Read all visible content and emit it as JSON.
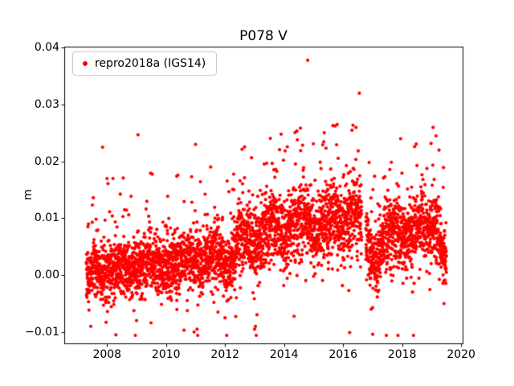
{
  "figure": {
    "title": "P078 V",
    "background_color": "#ffffff"
  },
  "legend": {
    "label": "repro2018a (IGS14)",
    "marker_color": "#ff0000",
    "position": "upper left"
  },
  "chart_data": {
    "type": "scatter",
    "title": "P078 V",
    "xlabel": "",
    "ylabel": "m",
    "grid": false,
    "legend_entries": [
      "repro2018a (IGS14)"
    ],
    "legend_position": "upper left",
    "xlim": [
      2006.55,
      2020.05
    ],
    "ylim": [
      -0.012,
      0.0402
    ],
    "xticks": [
      2008,
      2010,
      2012,
      2014,
      2016,
      2018,
      2020
    ],
    "yticks": [
      -0.01,
      0.0,
      0.01,
      0.02,
      0.03,
      0.04
    ],
    "series": [
      {
        "name": "repro2018a (IGS14)",
        "color": "#ff0000",
        "marker": ".",
        "x_start": 2007.3,
        "x_end": 2019.5,
        "samples_per_year": 340,
        "trend_knots": [
          [
            2007.3,
            0.0005
          ],
          [
            2007.7,
            0.0015
          ],
          [
            2008.0,
            0.0005
          ],
          [
            2008.45,
            0.002
          ],
          [
            2008.8,
            0.0005
          ],
          [
            2009.1,
            0.001
          ],
          [
            2009.45,
            0.0025
          ],
          [
            2009.8,
            0.0015
          ],
          [
            2010.1,
            0.0008
          ],
          [
            2010.5,
            0.0025
          ],
          [
            2010.85,
            0.003
          ],
          [
            2011.15,
            0.0012
          ],
          [
            2011.5,
            0.0035
          ],
          [
            2011.8,
            0.004
          ],
          [
            2012.05,
            0.0008
          ],
          [
            2012.45,
            0.006
          ],
          [
            2012.75,
            0.0075
          ],
          [
            2013.0,
            0.0035
          ],
          [
            2013.35,
            0.0075
          ],
          [
            2013.7,
            0.0095
          ],
          [
            2014.0,
            0.006
          ],
          [
            2014.35,
            0.0095
          ],
          [
            2014.7,
            0.011
          ],
          [
            2015.0,
            0.0075
          ],
          [
            2015.35,
            0.0095
          ],
          [
            2015.7,
            0.011
          ],
          [
            2016.0,
            0.008
          ],
          [
            2016.35,
            0.011
          ],
          [
            2016.6,
            0.0095
          ],
          [
            2016.9,
            0.004
          ],
          [
            2017.1,
            0.0015
          ],
          [
            2017.4,
            0.006
          ],
          [
            2017.7,
            0.008
          ],
          [
            2018.0,
            0.0065
          ],
          [
            2018.35,
            0.0065
          ],
          [
            2018.65,
            0.009
          ],
          [
            2018.95,
            0.0075
          ],
          [
            2019.15,
            0.0085
          ],
          [
            2019.45,
            0.0025
          ]
        ],
        "spread_knots": [
          [
            2007.3,
            0.0023
          ],
          [
            2010.0,
            0.0023
          ],
          [
            2011.5,
            0.0025
          ],
          [
            2012.5,
            0.0029
          ],
          [
            2014.0,
            0.0031
          ],
          [
            2016.5,
            0.0031
          ],
          [
            2017.5,
            0.0028
          ],
          [
            2019.5,
            0.0026
          ]
        ],
        "gaps": [
          [
            2016.63,
            2016.77
          ]
        ],
        "outliers": [
          [
            2007.85,
            0.0225
          ],
          [
            2008.0,
            0.017
          ],
          [
            2008.2,
            0.017
          ],
          [
            2009.05,
            0.0247
          ],
          [
            2009.35,
            0.013
          ],
          [
            2011.0,
            0.023
          ],
          [
            2013.9,
            0.0248
          ],
          [
            2014.45,
            0.0238
          ],
          [
            2014.8,
            0.0378
          ],
          [
            2015.8,
            0.0265
          ],
          [
            2016.3,
            0.0255
          ],
          [
            2016.55,
            0.032
          ],
          [
            2017.95,
            0.024
          ],
          [
            2019.05,
            0.026
          ],
          [
            2019.15,
            0.0245
          ],
          [
            2007.45,
            -0.009
          ],
          [
            2008.3,
            -0.0105
          ],
          [
            2009.0,
            -0.008
          ],
          [
            2010.95,
            -0.01
          ],
          [
            2011.05,
            -0.0095
          ],
          [
            2012.0,
            -0.0075
          ],
          [
            2013.0,
            -0.0095
          ],
          [
            2013.03,
            -0.009
          ],
          [
            2016.95,
            -0.006
          ],
          [
            2019.42,
            -0.005
          ]
        ]
      }
    ]
  }
}
